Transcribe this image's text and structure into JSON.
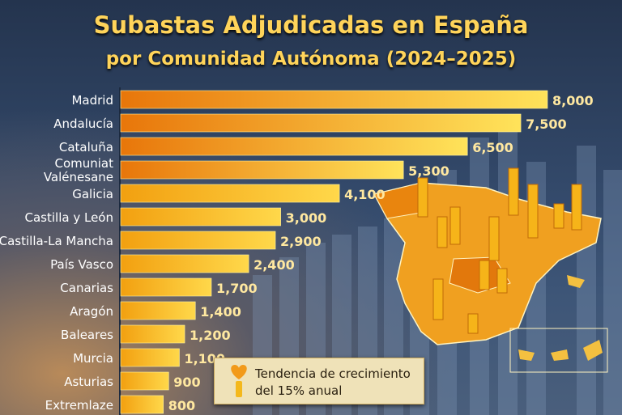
{
  "chart_data": {
    "type": "bar",
    "orientation": "horizontal",
    "title": "Subastas Adjudicadas en España",
    "subtitle": "por Comunidad Autónoma (2024–2025)",
    "categories": [
      "Madrid",
      "Andalucía",
      "Cataluña",
      "Comuniat Valénesane",
      "Galicia",
      "Castilla y León",
      "Castilla-La Mancha",
      "País Vasco",
      "Canarias",
      "Aragón",
      "Baleares",
      "Murcia",
      "Asturias",
      "Extremlaze"
    ],
    "values": [
      8000,
      7500,
      6500,
      5300,
      4100,
      3000,
      2900,
      2400,
      1700,
      1400,
      1200,
      1100,
      900,
      800
    ],
    "value_labels": [
      "8,000",
      "7,500",
      "6,500",
      "5,300",
      "4,100",
      "3,000",
      "2,900",
      "2,400",
      "1,700",
      "1,400",
      "1,200",
      "1,100",
      "900",
      "800"
    ],
    "colors": {
      "bar_start": "#e8760a",
      "bar_end": "#ffe35a",
      "value": "#ffe8a0",
      "title": "#ffd45a"
    },
    "legend": {
      "text_line1": "Tendencia de crecimiento",
      "text_line2": "del 15% anual",
      "icon": "heart-candle-icon"
    }
  }
}
